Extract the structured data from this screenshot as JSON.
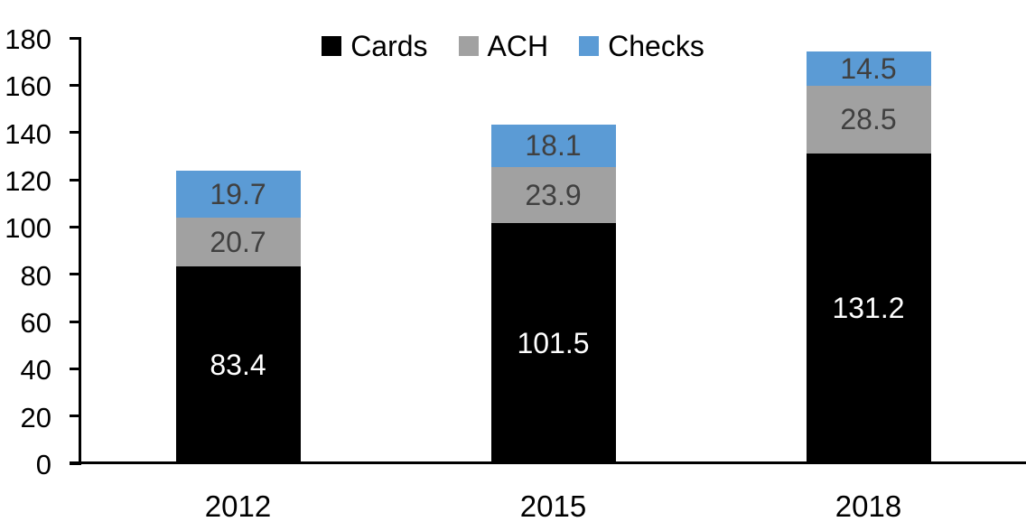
{
  "chart_data": {
    "type": "bar",
    "stacked": true,
    "categories": [
      "2012",
      "2015",
      "2018"
    ],
    "series": [
      {
        "name": "Cards",
        "color": "#000000",
        "label_color": "#ffffff",
        "values": [
          83.4,
          101.5,
          131.2
        ]
      },
      {
        "name": "ACH",
        "color": "#a1a1a1",
        "label_color": "#404040",
        "values": [
          20.7,
          23.9,
          28.5
        ]
      },
      {
        "name": "Checks",
        "color": "#5b9bd5",
        "label_color": "#404040",
        "values": [
          19.7,
          18.1,
          14.5
        ]
      }
    ],
    "segment_labels": {
      "Cards": [
        "83.4",
        "101.5",
        "131.2"
      ],
      "ACH": [
        "20.7",
        "23.9",
        "28.5"
      ],
      "Checks": [
        "19.7",
        "18.1",
        "14.5"
      ]
    },
    "title": "",
    "xlabel": "",
    "ylabel": "",
    "ylim": [
      0,
      180
    ],
    "ytick_step": 20,
    "ytick_labels": [
      "0",
      "20",
      "40",
      "60",
      "80",
      "100",
      "120",
      "140",
      "160",
      "180"
    ],
    "legend_position": "top",
    "grid": false,
    "axis_color": "#000000",
    "text_color": "#000000"
  }
}
